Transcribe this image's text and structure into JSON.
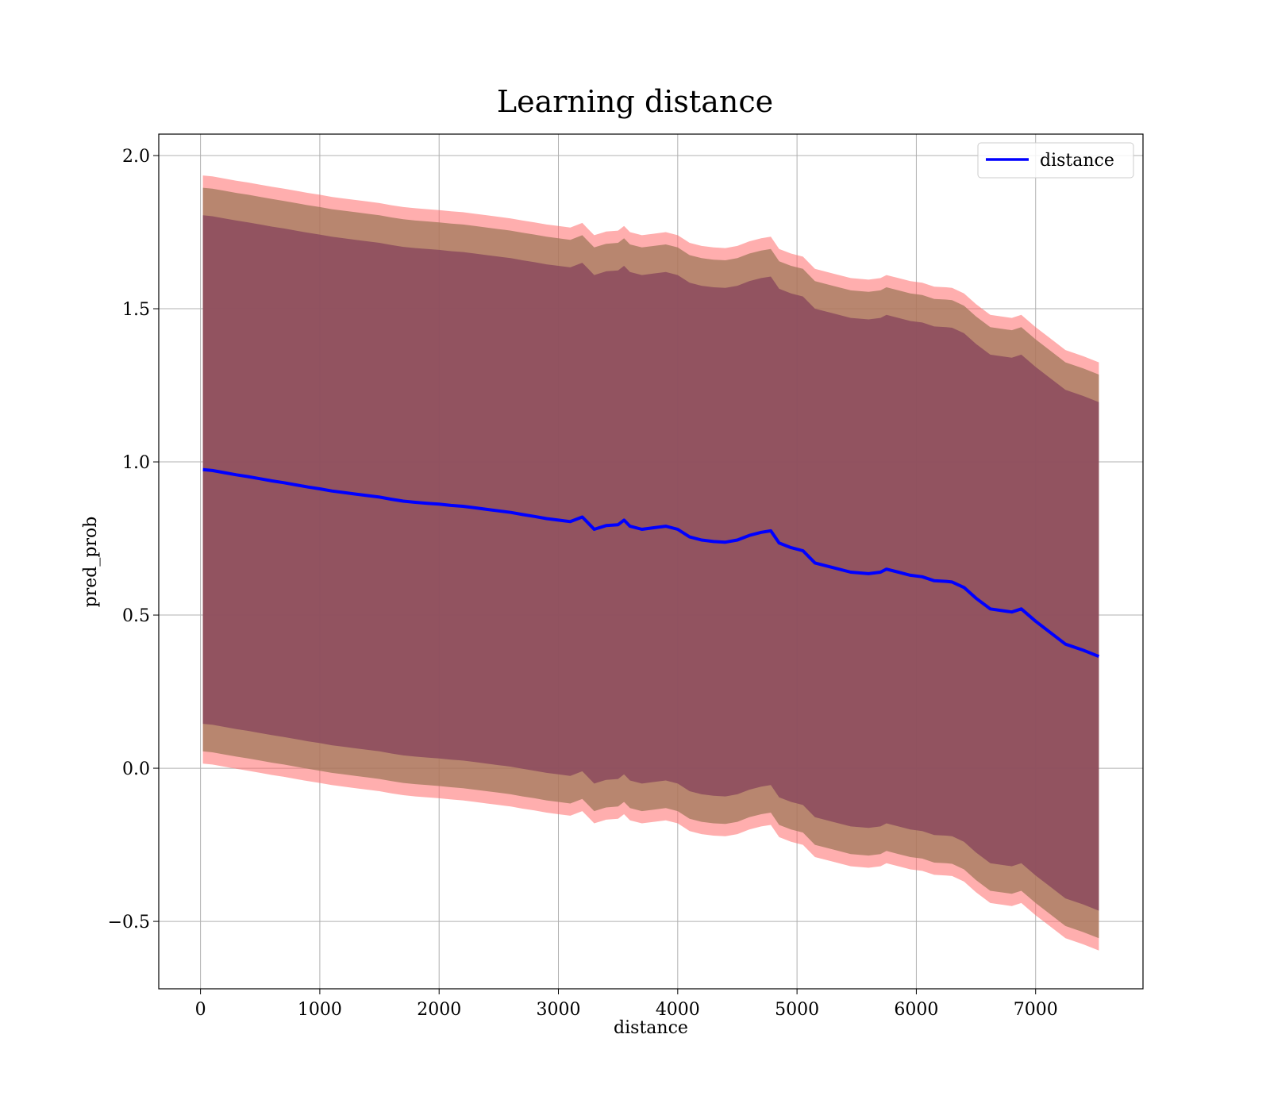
{
  "chart_data": {
    "type": "line",
    "title": "Learning distance",
    "xlabel": "distance",
    "ylabel": "pred_prob",
    "xlim": [
      -350,
      7900
    ],
    "ylim": [
      -0.72,
      2.07
    ],
    "xticks": [
      0,
      1000,
      2000,
      3000,
      4000,
      5000,
      6000,
      7000
    ],
    "xtick_labels": [
      "0",
      "1000",
      "2000",
      "3000",
      "4000",
      "5000",
      "6000",
      "7000"
    ],
    "yticks": [
      -0.5,
      0.0,
      0.5,
      1.0,
      1.5,
      2.0
    ],
    "ytick_labels": [
      "−0.5",
      "0.0",
      "0.5",
      "1.0",
      "1.5",
      "2.0"
    ],
    "grid": true,
    "legend_position": "top-right",
    "colors": {
      "line": "#0000ff",
      "band_outer": "#ff6b6b",
      "band_middle": "#a0785a",
      "band_inner": "#8b4a5e"
    },
    "series": [
      {
        "name": "distance",
        "x": [
          20,
          100,
          200,
          300,
          400,
          500,
          600,
          700,
          800,
          900,
          1000,
          1100,
          1200,
          1300,
          1400,
          1500,
          1600,
          1700,
          1800,
          1900,
          2000,
          2100,
          2200,
          2300,
          2400,
          2500,
          2600,
          2700,
          2800,
          2900,
          3000,
          3100,
          3200,
          3250,
          3300,
          3400,
          3500,
          3550,
          3600,
          3700,
          3800,
          3900,
          4000,
          4100,
          4200,
          4300,
          4400,
          4500,
          4600,
          4700,
          4780,
          4850,
          4950,
          5050,
          5150,
          5300,
          5450,
          5600,
          5700,
          5750,
          5850,
          5950,
          6050,
          6150,
          6250,
          6300,
          6400,
          6500,
          6620,
          6800,
          6880,
          7000,
          7100,
          7250,
          7400,
          7530
        ],
        "y": [
          0.975,
          0.972,
          0.965,
          0.958,
          0.952,
          0.945,
          0.938,
          0.932,
          0.925,
          0.918,
          0.912,
          0.905,
          0.9,
          0.895,
          0.89,
          0.885,
          0.878,
          0.872,
          0.868,
          0.865,
          0.862,
          0.858,
          0.855,
          0.85,
          0.845,
          0.84,
          0.835,
          0.828,
          0.822,
          0.815,
          0.81,
          0.805,
          0.82,
          0.8,
          0.78,
          0.792,
          0.795,
          0.81,
          0.79,
          0.78,
          0.785,
          0.79,
          0.78,
          0.755,
          0.745,
          0.74,
          0.738,
          0.745,
          0.76,
          0.77,
          0.775,
          0.735,
          0.72,
          0.71,
          0.67,
          0.655,
          0.64,
          0.635,
          0.64,
          0.65,
          0.64,
          0.63,
          0.625,
          0.612,
          0.61,
          0.608,
          0.59,
          0.555,
          0.52,
          0.51,
          0.52,
          0.48,
          0.45,
          0.405,
          0.385,
          0.365
        ],
        "band_outer_half_width": 0.96,
        "band_middle_half_width": 0.92,
        "band_inner_half_width": 0.83
      }
    ]
  }
}
